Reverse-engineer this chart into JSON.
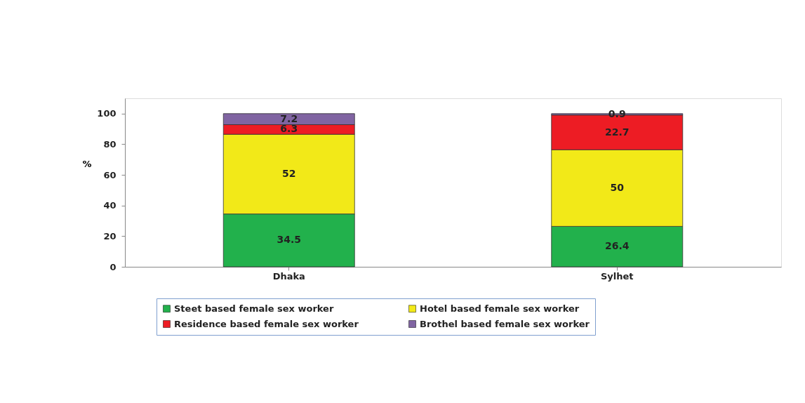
{
  "chart_data": {
    "type": "bar",
    "stacked": true,
    "ylabel": "%",
    "categories": [
      "Dhaka",
      "Sylhet"
    ],
    "series": [
      {
        "name": "Steet based female sex worker",
        "color": "#22b14c",
        "values": [
          34.5,
          26.4
        ]
      },
      {
        "name": "Hotel based female sex worker",
        "color": "#f2e918",
        "values": [
          52,
          50
        ]
      },
      {
        "name": "Residence based female sex worker",
        "color": "#ed1c24",
        "values": [
          6.3,
          22.7
        ]
      },
      {
        "name": "Brothel based female sex worker",
        "color": "#8064a2",
        "values": [
          7.2,
          0.9
        ]
      }
    ],
    "ylim": [
      0,
      110
    ],
    "yticks": [
      0,
      20,
      40,
      60,
      80,
      100
    ],
    "grid": false,
    "legend": "bottom",
    "data_labels": true
  }
}
